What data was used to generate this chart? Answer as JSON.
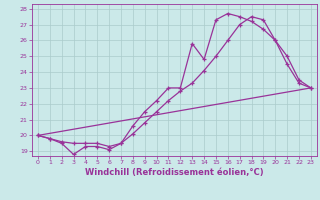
{
  "xlabel": "Windchill (Refroidissement éolien,°C)",
  "background_color": "#cbe9e9",
  "grid_color": "#aacccc",
  "line_color": "#993399",
  "xlim": [
    -0.5,
    23.5
  ],
  "ylim": [
    18.7,
    28.3
  ],
  "yticks": [
    19,
    20,
    21,
    22,
    23,
    24,
    25,
    26,
    27,
    28
  ],
  "xticks": [
    0,
    1,
    2,
    3,
    4,
    5,
    6,
    7,
    8,
    9,
    10,
    11,
    12,
    13,
    14,
    15,
    16,
    17,
    18,
    19,
    20,
    21,
    22,
    23
  ],
  "line1_x": [
    0,
    1,
    2,
    3,
    4,
    5,
    6,
    7,
    8,
    9,
    10,
    11,
    12,
    13,
    14,
    15,
    16,
    17,
    18,
    19,
    20,
    21,
    22,
    23
  ],
  "line1_y": [
    20.0,
    19.8,
    19.5,
    18.8,
    19.3,
    19.3,
    19.1,
    19.5,
    20.6,
    21.5,
    22.2,
    23.0,
    23.0,
    25.8,
    24.8,
    27.3,
    27.7,
    27.5,
    27.2,
    26.7,
    26.0,
    24.5,
    23.3,
    23.0
  ],
  "line2_x": [
    0,
    1,
    2,
    3,
    4,
    5,
    6,
    7,
    8,
    9,
    10,
    11,
    12,
    13,
    14,
    15,
    16,
    17,
    18,
    19,
    20,
    21,
    22,
    23
  ],
  "line2_y": [
    20.0,
    19.8,
    19.6,
    19.5,
    19.5,
    19.5,
    19.3,
    19.5,
    20.1,
    20.8,
    21.5,
    22.2,
    22.8,
    23.3,
    24.1,
    25.0,
    26.0,
    27.0,
    27.5,
    27.3,
    26.0,
    25.0,
    23.5,
    23.0
  ],
  "line3_x": [
    0,
    23
  ],
  "line3_y": [
    20.0,
    23.0
  ]
}
